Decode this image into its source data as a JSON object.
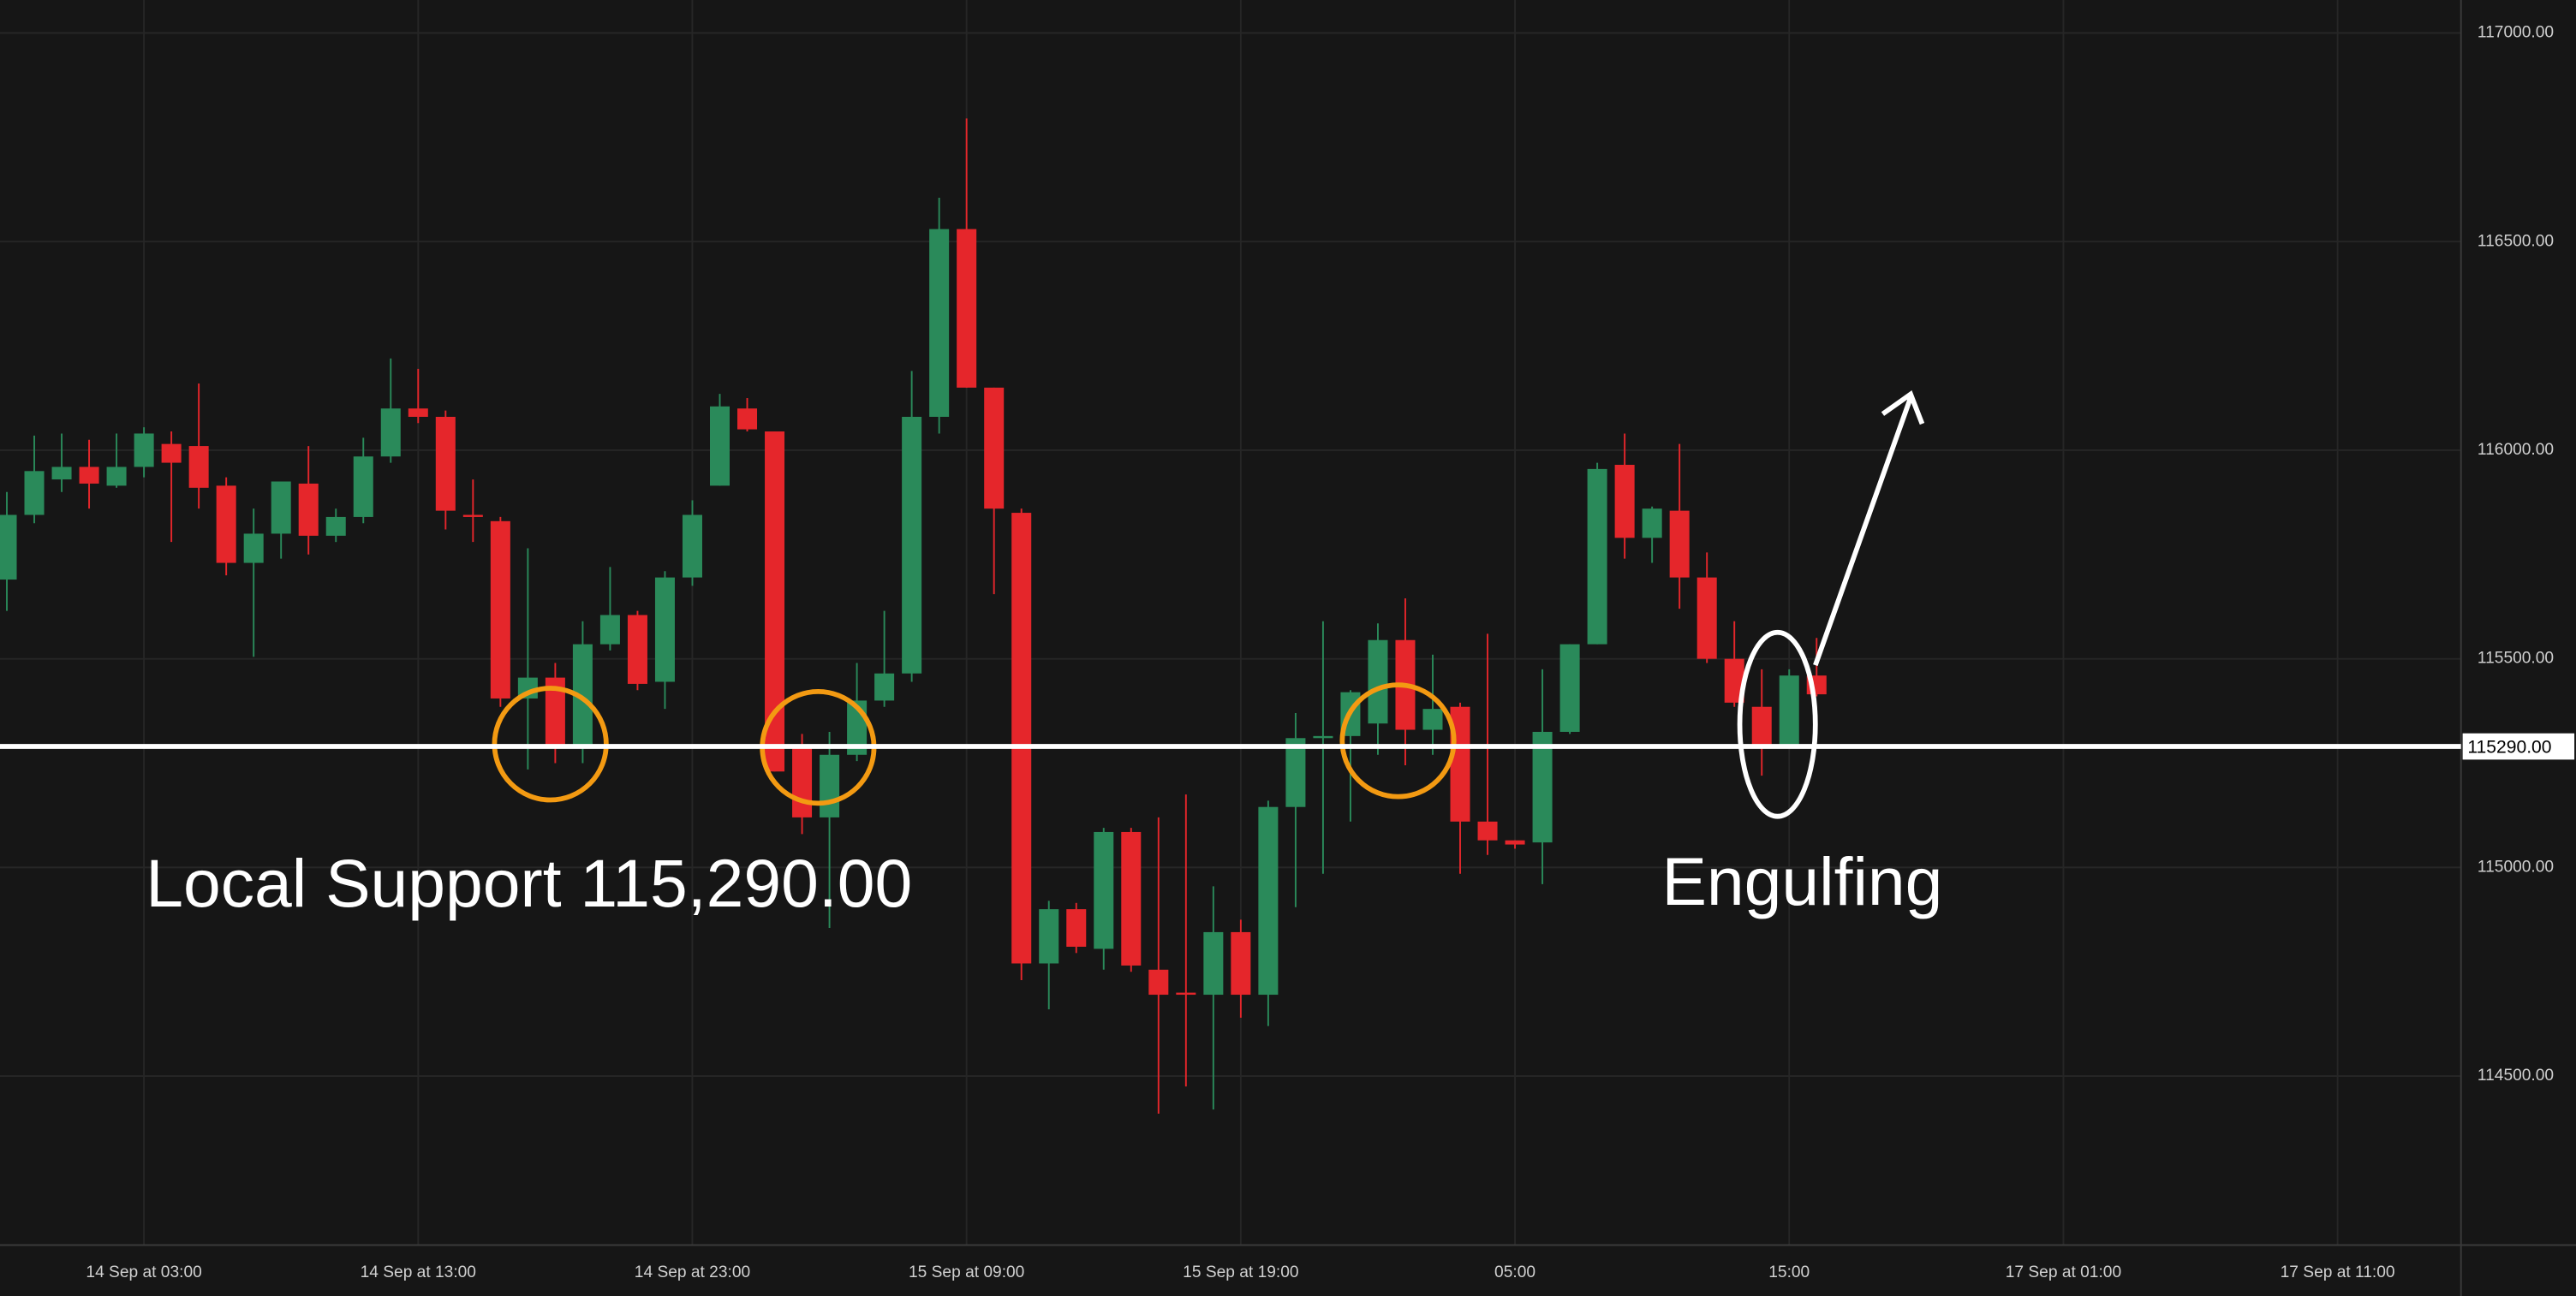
{
  "chart_data": {
    "type": "candlestick",
    "up_color": "#2a8a5a",
    "down_color": "#e5262b",
    "grid": true,
    "x": [
      "13 Sep 22:00",
      "13 Sep 23:00",
      "14 Sep 00:00",
      "14 Sep 01:00",
      "14 Sep 02:00",
      "14 Sep 03:00",
      "14 Sep 04:00",
      "14 Sep 05:00",
      "14 Sep 06:00",
      "14 Sep 07:00",
      "14 Sep 08:00",
      "14 Sep 09:00",
      "14 Sep 10:00",
      "14 Sep 11:00",
      "14 Sep 12:00",
      "14 Sep 13:00",
      "14 Sep 14:00",
      "14 Sep 15:00",
      "14 Sep 16:00",
      "14 Sep 17:00",
      "14 Sep 18:00",
      "14 Sep 19:00",
      "14 Sep 20:00",
      "14 Sep 21:00",
      "14 Sep 22:00",
      "14 Sep 23:00",
      "15 Sep 00:00",
      "15 Sep 01:00",
      "15 Sep 02:00",
      "15 Sep 03:00",
      "15 Sep 04:00",
      "15 Sep 05:00",
      "15 Sep 06:00",
      "15 Sep 07:00",
      "15 Sep 08:00",
      "15 Sep 09:00",
      "15 Sep 10:00",
      "15 Sep 11:00",
      "15 Sep 12:00",
      "15 Sep 13:00",
      "15 Sep 14:00",
      "15 Sep 15:00",
      "15 Sep 16:00",
      "15 Sep 17:00",
      "15 Sep 18:00",
      "15 Sep 19:00",
      "15 Sep 20:00",
      "15 Sep 21:00",
      "15 Sep 22:00",
      "15 Sep 23:00",
      "16 Sep 00:00",
      "16 Sep 01:00",
      "16 Sep 02:00",
      "16 Sep 03:00",
      "16 Sep 04:00",
      "16 Sep 05:00",
      "16 Sep 06:00",
      "16 Sep 07:00",
      "16 Sep 08:00",
      "16 Sep 09:00",
      "16 Sep 10:00",
      "16 Sep 11:00",
      "16 Sep 12:00",
      "16 Sep 13:00",
      "16 Sep 14:00",
      "16 Sep 15:00",
      "16 Sep 16:00"
    ],
    "open": [
      115690,
      115845,
      115930,
      115960,
      115915,
      115960,
      116015,
      116010,
      115915,
      115730,
      115800,
      115920,
      115795,
      115840,
      115985,
      116100,
      116080,
      115845,
      115830,
      115405,
      115455,
      115295,
      115535,
      115605,
      115445,
      115695,
      115915,
      116100,
      116045,
      115290,
      115120,
      115270,
      115400,
      115465,
      116080,
      116530,
      116150,
      115850,
      114770,
      114900,
      114805,
      115085,
      114755,
      114700,
      114695,
      114845,
      114695,
      115145,
      115310,
      115315,
      115345,
      115545,
      115330,
      115385,
      115110,
      115065,
      115060,
      115325,
      115535,
      115965,
      115790,
      115855,
      115695,
      115500,
      115385,
      115295,
      115460
    ],
    "high": [
      115900,
      116035,
      116040,
      116025,
      116040,
      116055,
      116045,
      116160,
      115935,
      115860,
      115925,
      116010,
      115860,
      116030,
      116220,
      116195,
      116095,
      115930,
      115840,
      115765,
      115490,
      115590,
      115720,
      115615,
      115710,
      115880,
      116135,
      116125,
      116045,
      115320,
      115325,
      115490,
      115615,
      116190,
      116605,
      116795,
      116150,
      115860,
      114920,
      114915,
      115095,
      115095,
      115120,
      115175,
      114955,
      114875,
      115160,
      115370,
      115590,
      115425,
      115585,
      115645,
      115510,
      115395,
      115560,
      115065,
      115475,
      115535,
      115970,
      116040,
      115865,
      116015,
      115755,
      115590,
      115475,
      115475,
      115550
    ],
    "low": [
      115615,
      115825,
      115900,
      115860,
      115910,
      115935,
      115780,
      115860,
      115700,
      115505,
      115740,
      115750,
      115780,
      115825,
      115970,
      116065,
      115810,
      115780,
      115385,
      115235,
      115250,
      115250,
      115520,
      115425,
      115380,
      115675,
      115915,
      116045,
      115230,
      115080,
      114855,
      115255,
      115385,
      115445,
      116040,
      116150,
      115655,
      114730,
      114660,
      114795,
      114755,
      114750,
      114410,
      114475,
      114420,
      114640,
      114620,
      114905,
      114985,
      115110,
      115270,
      115245,
      115270,
      114985,
      115030,
      115045,
      114960,
      115320,
      115535,
      115740,
      115730,
      115620,
      115490,
      115385,
      115220,
      115290,
      115410
    ],
    "close": [
      115845,
      115950,
      115960,
      115920,
      115960,
      116040,
      115970,
      115910,
      115730,
      115800,
      115925,
      115795,
      115840,
      115985,
      116100,
      116080,
      115855,
      115840,
      115405,
      115455,
      115295,
      115535,
      115605,
      115440,
      115695,
      115845,
      116105,
      116050,
      115230,
      115120,
      115270,
      115400,
      115465,
      116080,
      116530,
      116150,
      115860,
      114770,
      114900,
      114810,
      115085,
      114765,
      114695,
      114695,
      114845,
      114695,
      115145,
      115310,
      115315,
      115420,
      115545,
      115330,
      115380,
      115110,
      115065,
      115055,
      115325,
      115535,
      115955,
      115790,
      115860,
      115695,
      115500,
      115395,
      115295,
      115460,
      115415
    ],
    "xlim": [
      "13 Sep 21:45",
      "17 Sep 15:30"
    ],
    "xticks": [
      {
        "value": "14 Sep 03:00",
        "label": "14 Sep at 03:00"
      },
      {
        "value": "14 Sep 13:00",
        "label": "14 Sep at 13:00"
      },
      {
        "value": "14 Sep 23:00",
        "label": "14 Sep at 23:00"
      },
      {
        "value": "15 Sep 09:00",
        "label": "15 Sep at 09:00"
      },
      {
        "value": "15 Sep 19:00",
        "label": "15 Sep at 19:00"
      },
      {
        "value": "16 Sep 05:00",
        "label": "05:00"
      },
      {
        "value": "16 Sep 15:00",
        "label": "15:00"
      },
      {
        "value": "17 Sep 01:00",
        "label": "17 Sep at 01:00"
      },
      {
        "value": "17 Sep 11:00",
        "label": "17 Sep at 11:00"
      }
    ],
    "ylim": [
      114095,
      117079
    ],
    "yticks": [
      {
        "value": 114500,
        "label": "114500.00"
      },
      {
        "value": 115000,
        "label": "115000.00"
      },
      {
        "value": 115500,
        "label": "115500.00"
      },
      {
        "value": 116000,
        "label": "116000.00"
      },
      {
        "value": 116500,
        "label": "116500.00"
      },
      {
        "value": 117000,
        "label": "117000.00"
      }
    ],
    "support": {
      "value": 115290,
      "label": "115290.00"
    },
    "annotations": [
      "Local Support 115,290.00",
      "Engulfing"
    ]
  }
}
